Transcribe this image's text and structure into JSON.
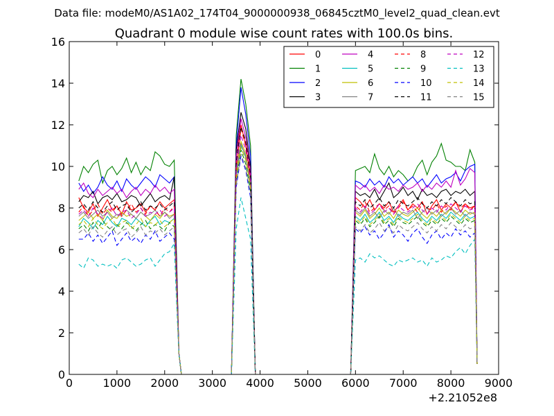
{
  "chart_data": {
    "type": "line",
    "suptitle": "Data file: modeM0/AS1A02_174T04_9000000938_06845cztM0_level2_quad_clean.evt",
    "title": "Quadrant 0 module wise count rates with 100.0s bins.",
    "xlabel": "",
    "ylabel": "",
    "xlim": [
      0,
      9000
    ],
    "ylim": [
      0,
      16
    ],
    "x_offset_label": "+2.21052e8",
    "x_ticks": [
      0,
      1000,
      2000,
      3000,
      4000,
      5000,
      6000,
      7000,
      8000,
      9000
    ],
    "x_tick_labels": [
      "0",
      "1000",
      "2000",
      "3000",
      "4000",
      "5000",
      "6000",
      "7000",
      "8000",
      "9000"
    ],
    "y_ticks": [
      0,
      2,
      4,
      6,
      8,
      10,
      12,
      14,
      16
    ],
    "y_tick_labels": [
      "0",
      "2",
      "4",
      "6",
      "8",
      "10",
      "12",
      "14",
      "16"
    ],
    "grid": false,
    "legend_position": "top-right",
    "legend_columns": 4,
    "x_segments": {
      "seg1": [
        200,
        300,
        400,
        500,
        600,
        700,
        800,
        900,
        1000,
        1100,
        1200,
        1300,
        1400,
        1500,
        1600,
        1700,
        1800,
        1900,
        2000,
        2100,
        2200
      ],
      "drop1": [
        2250,
        2300,
        2350
      ],
      "gap1": [
        2400,
        3400
      ],
      "seg2": [
        3500,
        3600,
        3700,
        3800
      ],
      "drop2": [
        3850,
        3900
      ],
      "gap2": [
        5900
      ],
      "seg3": [
        6000,
        6100,
        6200,
        6300,
        6400,
        6500,
        6600,
        6700,
        6800,
        6900,
        7000,
        7100,
        7200,
        7300,
        7400,
        7500,
        7600,
        7700,
        7800,
        7900,
        8000,
        8100,
        8200,
        8300,
        8400,
        8500
      ],
      "drop3": [
        8550
      ]
    },
    "series": [
      {
        "name": "0",
        "color": "#ff0000",
        "dash": "solid",
        "seg1": [
          8.5,
          8.0,
          7.8,
          8.2,
          7.6,
          8.0,
          8.4,
          7.9,
          8.1,
          7.7,
          8.3,
          7.9,
          8.0,
          8.2,
          7.8,
          8.1,
          7.9,
          8.3,
          8.0,
          8.2,
          8.4
        ],
        "seg2": [
          10.5,
          12.0,
          11.0,
          9.5
        ],
        "seg3": [
          8.5,
          8.3,
          8.0,
          8.4,
          7.9,
          8.2,
          8.0,
          8.3,
          7.8,
          8.1,
          8.4,
          7.9,
          8.2,
          8.0,
          8.3,
          7.7,
          8.1,
          8.4,
          7.9,
          8.2,
          8.0,
          8.3,
          7.8,
          8.2,
          8.0,
          8.1
        ]
      },
      {
        "name": "1",
        "color": "#008000",
        "dash": "solid",
        "seg1": [
          9.3,
          10.0,
          9.7,
          10.1,
          10.3,
          9.2,
          9.8,
          10.0,
          9.6,
          9.9,
          10.4,
          9.7,
          10.2,
          9.6,
          10.0,
          9.8,
          10.7,
          10.5,
          10.1,
          10.0,
          10.3
        ],
        "seg2": [
          11.5,
          14.2,
          13.0,
          11.0
        ],
        "seg3": [
          9.8,
          9.9,
          10.0,
          9.7,
          10.6,
          9.9,
          9.6,
          10.0,
          9.5,
          9.8,
          9.6,
          9.3,
          9.5,
          10.0,
          10.3,
          9.6,
          10.2,
          10.5,
          11.1,
          10.3,
          10.2,
          10.0,
          10.0,
          9.8,
          10.8,
          10.2
        ]
      },
      {
        "name": "2",
        "color": "#0000ff",
        "dash": "solid",
        "seg1": [
          9.2,
          8.8,
          9.1,
          8.7,
          9.0,
          9.5,
          9.1,
          8.9,
          9.3,
          8.8,
          9.4,
          9.1,
          8.9,
          9.2,
          9.5,
          9.3,
          9.0,
          9.6,
          9.4,
          9.2,
          9.5
        ],
        "seg2": [
          11.0,
          13.8,
          12.5,
          10.5
        ],
        "seg3": [
          9.3,
          9.2,
          9.0,
          9.4,
          9.1,
          9.3,
          9.0,
          9.5,
          9.2,
          9.4,
          9.1,
          9.3,
          9.5,
          9.2,
          9.4,
          9.0,
          9.3,
          9.6,
          9.2,
          9.4,
          9.5,
          9.7,
          9.3,
          9.8,
          10.0,
          10.1
        ]
      },
      {
        "name": "3",
        "color": "#000000",
        "dash": "solid",
        "seg1": [
          8.3,
          8.6,
          8.5,
          8.8,
          8.2,
          8.5,
          8.6,
          8.4,
          8.7,
          8.3,
          8.4,
          8.6,
          8.5,
          8.1,
          8.4,
          8.7,
          8.3,
          8.5,
          8.6,
          8.4,
          9.5
        ],
        "seg2": [
          10.8,
          12.6,
          11.8,
          10.0
        ],
        "seg3": [
          8.8,
          8.6,
          8.7,
          8.5,
          8.9,
          8.4,
          8.8,
          9.2,
          8.5,
          8.7,
          9.0,
          8.6,
          8.8,
          8.4,
          8.9,
          8.6,
          8.7,
          8.5,
          8.8,
          8.9,
          8.6,
          8.8,
          8.7,
          8.9,
          8.6,
          8.8
        ]
      },
      {
        "name": "4",
        "color": "#bf00bf",
        "dash": "solid",
        "seg1": [
          8.9,
          9.2,
          8.7,
          8.5,
          8.9,
          8.6,
          8.8,
          9.0,
          8.7,
          8.9,
          8.5,
          8.8,
          9.0,
          8.6,
          8.9,
          8.7,
          9.1,
          8.8,
          9.0,
          8.7,
          8.9
        ],
        "seg2": [
          10.5,
          12.3,
          11.4,
          9.8
        ],
        "seg3": [
          9.1,
          8.9,
          9.1,
          8.8,
          9.0,
          8.7,
          9.1,
          8.9,
          9.0,
          8.8,
          9.1,
          8.9,
          9.0,
          9.2,
          8.8,
          9.1,
          8.9,
          9.2,
          9.0,
          9.3,
          9.0,
          9.8,
          9.1,
          9.4,
          9.9,
          9.7
        ]
      },
      {
        "name": "5",
        "color": "#00bfbf",
        "dash": "solid",
        "seg1": [
          7.1,
          7.5,
          7.3,
          7.0,
          7.4,
          7.2,
          7.6,
          7.3,
          7.1,
          7.5,
          7.4,
          7.2,
          7.5,
          7.3,
          7.1,
          7.4,
          7.6,
          7.2,
          7.4,
          7.3,
          7.5
        ],
        "seg2": [
          9.5,
          11.0,
          10.5,
          9.0
        ],
        "seg3": [
          7.6,
          7.4,
          7.7,
          7.3,
          7.5,
          7.8,
          7.4,
          7.6,
          7.3,
          7.7,
          7.5,
          7.4,
          7.6,
          7.8,
          7.5,
          7.3,
          7.6,
          7.4,
          7.7,
          7.5,
          7.8,
          7.6,
          7.4,
          7.7,
          7.5,
          7.6
        ]
      },
      {
        "name": "6",
        "color": "#bfbf00",
        "dash": "solid",
        "seg1": [
          7.4,
          7.6,
          7.8,
          7.5,
          7.7,
          7.4,
          7.9,
          7.6,
          7.5,
          7.8,
          7.6,
          7.7,
          7.5,
          7.8,
          7.6,
          7.4,
          7.7,
          7.5,
          7.8,
          7.6,
          7.7
        ],
        "seg2": [
          9.8,
          11.2,
          10.6,
          9.2
        ],
        "seg3": [
          7.8,
          7.6,
          7.9,
          7.5,
          7.7,
          8.0,
          7.6,
          7.8,
          7.5,
          7.9,
          7.7,
          7.6,
          7.8,
          8.0,
          7.7,
          7.5,
          7.8,
          7.6,
          7.9,
          7.7,
          8.0,
          7.8,
          7.6,
          7.9,
          7.7,
          7.8
        ]
      },
      {
        "name": "7",
        "color": "#808080",
        "dash": "solid",
        "seg1": [
          7.6,
          7.8,
          7.5,
          7.7,
          7.9,
          7.6,
          7.8,
          7.5,
          7.7,
          7.6,
          7.9,
          7.7,
          7.5,
          7.8,
          7.6,
          7.7,
          7.9,
          7.6,
          7.8,
          7.5,
          7.7
        ],
        "seg2": [
          9.6,
          11.1,
          10.4,
          9.1
        ],
        "seg3": [
          7.9,
          7.7,
          8.0,
          7.6,
          7.8,
          7.5,
          7.9,
          7.7,
          8.0,
          7.6,
          7.8,
          7.7,
          7.9,
          7.5,
          7.8,
          8.0,
          7.7,
          7.9,
          7.6,
          7.8,
          8.0,
          7.7,
          7.9,
          7.6,
          7.8,
          7.7
        ]
      },
      {
        "name": "8",
        "color": "#ff0000",
        "dash": "dashed",
        "seg1": [
          7.8,
          8.1,
          7.6,
          7.9,
          8.2,
          7.7,
          8.0,
          7.8,
          8.1,
          7.6,
          7.9,
          8.2,
          7.8,
          8.0,
          7.7,
          8.1,
          7.9,
          7.6,
          8.0,
          7.8,
          8.1
        ],
        "seg2": [
          10.0,
          11.8,
          11.0,
          9.4
        ],
        "seg3": [
          8.1,
          7.9,
          8.3,
          7.8,
          8.0,
          8.2,
          7.9,
          8.1,
          7.7,
          8.0,
          8.3,
          7.9,
          8.1,
          7.8,
          8.2,
          8.0,
          7.9,
          8.2,
          7.8,
          8.1,
          7.9,
          8.3,
          8.0,
          8.2,
          7.9,
          8.1
        ]
      },
      {
        "name": "9",
        "color": "#008000",
        "dash": "dashed",
        "seg1": [
          7.0,
          7.2,
          6.9,
          7.3,
          7.0,
          7.4,
          7.1,
          6.9,
          7.2,
          7.0,
          7.3,
          7.1,
          6.9,
          7.2,
          7.4,
          7.0,
          7.2,
          7.1,
          6.9,
          7.3,
          7.1
        ],
        "seg2": [
          9.3,
          10.8,
          10.1,
          8.8
        ],
        "seg3": [
          7.4,
          7.2,
          7.5,
          7.1,
          7.3,
          7.6,
          7.2,
          7.4,
          7.1,
          7.5,
          7.3,
          7.2,
          7.4,
          7.6,
          7.3,
          7.1,
          7.4,
          7.2,
          7.5,
          7.3,
          7.6,
          7.4,
          7.2,
          7.5,
          7.3,
          7.4
        ]
      },
      {
        "name": "10",
        "color": "#0000ff",
        "dash": "dashed",
        "seg1": [
          6.5,
          6.5,
          6.8,
          6.4,
          6.7,
          6.3,
          6.6,
          6.9,
          6.2,
          6.5,
          6.8,
          6.4,
          6.6,
          6.3,
          6.7,
          6.5,
          6.9,
          6.4,
          6.6,
          6.8,
          6.5
        ],
        "seg2": [
          9.0,
          10.5,
          9.8,
          8.5
        ],
        "seg3": [
          7.0,
          6.8,
          7.1,
          6.7,
          6.9,
          6.5,
          6.8,
          7.2,
          6.6,
          6.9,
          6.7,
          6.4,
          6.8,
          7.0,
          6.6,
          6.3,
          6.7,
          6.9,
          6.5,
          6.8,
          6.6,
          7.0,
          6.7,
          6.9,
          6.6,
          6.8
        ]
      },
      {
        "name": "11",
        "color": "#000000",
        "dash": "dashed",
        "seg1": [
          8.0,
          8.2,
          7.9,
          8.3,
          8.0,
          7.8,
          8.1,
          8.3,
          7.9,
          8.1,
          8.2,
          7.8,
          8.0,
          8.3,
          7.9,
          8.1,
          8.0,
          8.2,
          7.9,
          8.1,
          8.3
        ],
        "seg2": [
          10.2,
          11.9,
          11.2,
          9.6
        ],
        "seg3": [
          8.3,
          8.1,
          8.4,
          8.0,
          8.2,
          8.5,
          8.1,
          8.3,
          8.0,
          8.4,
          8.2,
          8.1,
          8.3,
          8.5,
          8.2,
          8.0,
          8.3,
          8.1,
          8.4,
          8.2,
          8.5,
          8.3,
          8.1,
          8.4,
          8.2,
          8.3
        ]
      },
      {
        "name": "12",
        "color": "#bf00bf",
        "dash": "dashed",
        "seg1": [
          7.7,
          7.9,
          7.6,
          8.0,
          7.7,
          7.5,
          7.8,
          8.0,
          7.6,
          7.8,
          7.9,
          7.5,
          7.7,
          8.0,
          7.6,
          7.8,
          7.7,
          7.9,
          7.6,
          7.8,
          8.0
        ],
        "seg2": [
          9.9,
          11.5,
          10.8,
          9.3
        ],
        "seg3": [
          8.0,
          7.8,
          8.1,
          7.7,
          7.9,
          8.2,
          7.8,
          8.0,
          7.7,
          8.1,
          7.9,
          7.8,
          8.0,
          8.2,
          7.9,
          7.7,
          8.0,
          7.8,
          8.1,
          7.9,
          8.2,
          8.0,
          7.8,
          8.1,
          7.9,
          8.0
        ]
      },
      {
        "name": "13",
        "color": "#00bfbf",
        "dash": "dashed",
        "seg1": [
          5.3,
          5.1,
          5.6,
          5.5,
          5.2,
          5.3,
          5.2,
          5.3,
          5.1,
          5.5,
          5.6,
          5.4,
          5.2,
          5.3,
          5.5,
          5.6,
          5.2,
          5.5,
          5.8,
          5.9,
          6.3
        ],
        "seg2": [
          7.0,
          8.5,
          7.5,
          6.5
        ],
        "seg3": [
          5.5,
          5.6,
          5.4,
          5.8,
          5.6,
          5.7,
          5.5,
          5.3,
          5.2,
          5.5,
          5.4,
          5.5,
          5.6,
          5.4,
          5.5,
          5.2,
          5.6,
          5.4,
          5.5,
          5.7,
          5.6,
          5.9,
          6.1,
          5.8,
          6.2,
          6.5
        ]
      },
      {
        "name": "14",
        "color": "#bfbf00",
        "dash": "dashed",
        "seg1": [
          7.2,
          7.4,
          7.1,
          7.5,
          7.2,
          7.0,
          7.3,
          7.5,
          7.1,
          7.3,
          7.4,
          7.0,
          7.2,
          7.5,
          7.1,
          7.3,
          7.2,
          7.4,
          7.1,
          7.3,
          7.5
        ],
        "seg2": [
          9.4,
          10.9,
          10.3,
          9.0
        ],
        "seg3": [
          7.5,
          7.3,
          7.6,
          7.2,
          7.4,
          7.7,
          7.3,
          7.5,
          7.2,
          7.6,
          7.4,
          7.3,
          7.5,
          7.7,
          7.4,
          7.2,
          7.5,
          7.3,
          7.6,
          7.4,
          7.7,
          7.5,
          7.3,
          7.6,
          7.4,
          7.5
        ]
      },
      {
        "name": "15",
        "color": "#808080",
        "dash": "dashed",
        "seg1": [
          6.8,
          7.0,
          6.7,
          7.1,
          6.8,
          6.6,
          6.9,
          7.1,
          6.7,
          6.9,
          7.0,
          6.6,
          6.8,
          7.1,
          6.7,
          6.9,
          6.8,
          7.0,
          6.7,
          6.9,
          7.1
        ],
        "seg2": [
          9.1,
          10.6,
          9.9,
          8.7
        ],
        "seg3": [
          7.1,
          6.9,
          7.2,
          6.8,
          7.0,
          7.3,
          6.9,
          7.1,
          6.8,
          7.2,
          7.0,
          6.9,
          7.1,
          7.3,
          7.0,
          6.8,
          7.1,
          6.9,
          7.2,
          7.0,
          7.3,
          7.1,
          6.9,
          7.2,
          7.0,
          7.1
        ]
      }
    ]
  }
}
